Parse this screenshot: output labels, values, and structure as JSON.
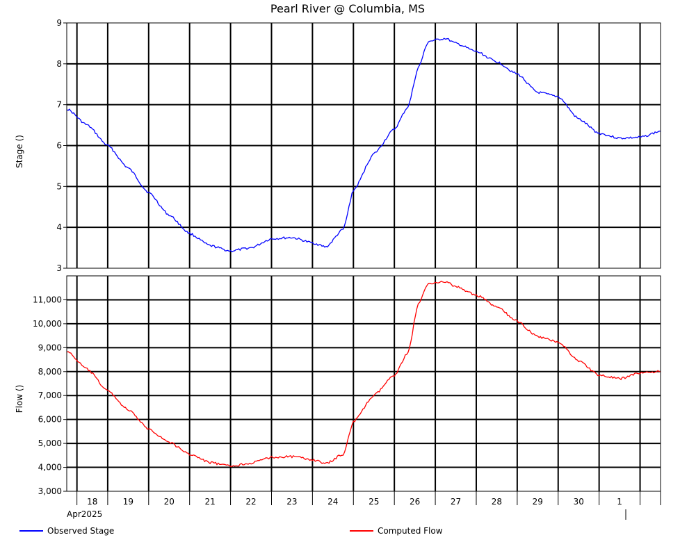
{
  "chart_data": {
    "type": "line",
    "title": "Pearl River @ Columbia, MS",
    "x_axis": {
      "month_label": "Apr2025",
      "day_labels": [
        "18",
        "19",
        "20",
        "21",
        "22",
        "23",
        "24",
        "25",
        "26",
        "27",
        "28",
        "29",
        "30",
        "1"
      ],
      "range": [
        "2025-04-17",
        "2025-05-01T12:00"
      ]
    },
    "grid": true,
    "legend": {
      "placement": "bottom",
      "entries": [
        {
          "name": "Observed Stage",
          "color": "#0000ff"
        },
        {
          "name": "Computed Flow",
          "color": "#ff0000"
        }
      ]
    },
    "panels": [
      {
        "id": "stage",
        "ylabel": "Stage ()",
        "ylim": [
          3,
          9
        ],
        "yticks": [
          3,
          4,
          5,
          6,
          7,
          8,
          9
        ],
        "ytick_labels": [
          "3",
          "4",
          "5",
          "6",
          "7",
          "8",
          "9"
        ],
        "series": {
          "name": "Observed Stage",
          "color": "#0000ff",
          "x": [
            "2025-04-17T00:00",
            "2025-04-17T12:00",
            "2025-04-18T00:00",
            "2025-04-18T12:00",
            "2025-04-19T00:00",
            "2025-04-19T12:00",
            "2025-04-20T00:00",
            "2025-04-20T12:00",
            "2025-04-21T00:00",
            "2025-04-21T12:00",
            "2025-04-22T00:00",
            "2025-04-22T12:00",
            "2025-04-23T00:00",
            "2025-04-23T08:00",
            "2025-04-23T18:00",
            "2025-04-24T00:00",
            "2025-04-24T12:00",
            "2025-04-25T00:00",
            "2025-04-25T08:00",
            "2025-04-25T14:00",
            "2025-04-25T20:00",
            "2025-04-26T06:00",
            "2025-04-26T12:00",
            "2025-04-27T00:00",
            "2025-04-27T12:00",
            "2025-04-28T00:00",
            "2025-04-28T12:00",
            "2025-04-29T00:00",
            "2025-04-29T12:00",
            "2025-04-30T00:00",
            "2025-04-30T12:00",
            "2025-05-01T00:00",
            "2025-05-01T12:00"
          ],
          "y": [
            6.9,
            6.5,
            6.0,
            5.45,
            4.85,
            4.3,
            3.85,
            3.55,
            3.42,
            3.5,
            3.72,
            3.75,
            3.62,
            3.52,
            3.95,
            4.9,
            5.8,
            6.4,
            6.95,
            7.9,
            8.55,
            8.62,
            8.5,
            8.3,
            8.05,
            7.75,
            7.3,
            7.2,
            6.65,
            6.3,
            6.18,
            6.2,
            6.35
          ]
        }
      },
      {
        "id": "flow",
        "ylabel": "Flow ()",
        "ylim": [
          3000,
          12000
        ],
        "yticks": [
          3000,
          4000,
          5000,
          6000,
          7000,
          8000,
          9000,
          10000,
          11000
        ],
        "ytick_labels": [
          "3,000",
          "4,000",
          "5,000",
          "6,000",
          "7,000",
          "8,000",
          "9,000",
          "10,000",
          "11,000"
        ],
        "series": {
          "name": "Computed Flow",
          "color": "#ff0000",
          "x": [
            "2025-04-17T00:00",
            "2025-04-17T12:00",
            "2025-04-18T00:00",
            "2025-04-18T12:00",
            "2025-04-19T00:00",
            "2025-04-19T12:00",
            "2025-04-20T00:00",
            "2025-04-20T12:00",
            "2025-04-21T00:00",
            "2025-04-21T12:00",
            "2025-04-22T00:00",
            "2025-04-22T12:00",
            "2025-04-23T00:00",
            "2025-04-23T08:00",
            "2025-04-23T18:00",
            "2025-04-24T00:00",
            "2025-04-24T12:00",
            "2025-04-25T00:00",
            "2025-04-25T08:00",
            "2025-04-25T14:00",
            "2025-04-25T20:00",
            "2025-04-26T06:00",
            "2025-04-26T12:00",
            "2025-04-27T00:00",
            "2025-04-27T12:00",
            "2025-04-28T00:00",
            "2025-04-28T12:00",
            "2025-04-29T00:00",
            "2025-04-29T12:00",
            "2025-04-30T00:00",
            "2025-04-30T12:00",
            "2025-05-01T00:00",
            "2025-05-01T12:00"
          ],
          "y": [
            8850,
            8100,
            7200,
            6400,
            5600,
            5050,
            4550,
            4200,
            4050,
            4180,
            4420,
            4450,
            4320,
            4150,
            4550,
            5900,
            7000,
            7850,
            8800,
            10800,
            11700,
            11750,
            11550,
            11200,
            10700,
            10100,
            9450,
            9250,
            8450,
            7850,
            7700,
            7950,
            8000
          ]
        }
      }
    ]
  }
}
